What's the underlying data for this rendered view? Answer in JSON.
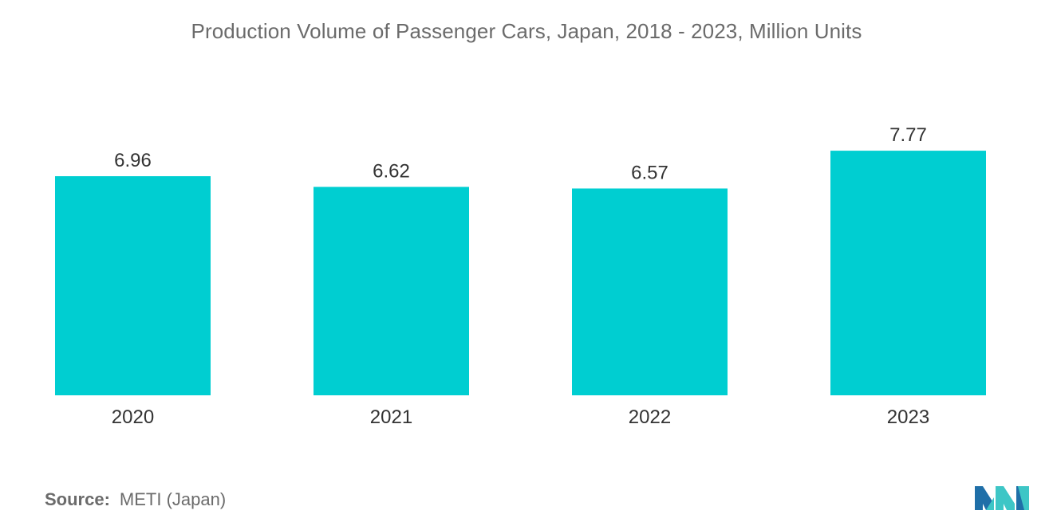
{
  "chart_data": {
    "type": "bar",
    "title": "Production Volume of Passenger Cars, Japan, 2018 - 2023, Million Units",
    "categories": [
      "2020",
      "2021",
      "2022",
      "2023"
    ],
    "values": [
      6.96,
      6.62,
      6.57,
      7.77
    ],
    "value_labels": [
      "6.96",
      "6.62",
      "6.57",
      "7.77"
    ],
    "xlabel": "",
    "ylabel": "",
    "ylim": [
      0,
      8
    ],
    "grid": false,
    "legend": "none",
    "bar_color": "#00CED1"
  },
  "footer": {
    "source_label": "Source:",
    "source_text": "METI (Japan)"
  },
  "logo": {
    "icon": "mordor-intelligence-logo-icon",
    "colors": [
      "#1f6fa8",
      "#3ec6c6"
    ]
  }
}
